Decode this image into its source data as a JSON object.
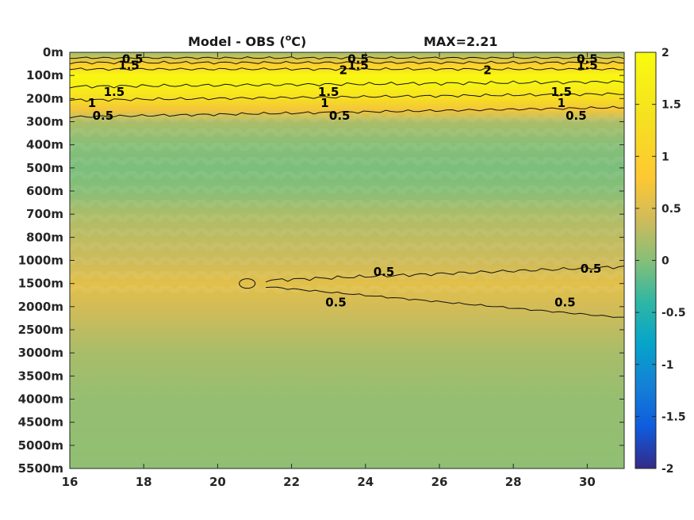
{
  "chart_data": {
    "type": "heatmap",
    "title": "Model - OBS (",
    "title_unit_sup": "o",
    "title_unit": "C)",
    "max_label": "MAX=2.21",
    "x_ticks": [
      "16",
      "18",
      "20",
      "22",
      "24",
      "26",
      "28",
      "30"
    ],
    "x_values": [
      16,
      18,
      20,
      22,
      24,
      26,
      28,
      30
    ],
    "xlim": [
      16,
      31
    ],
    "y_ticks": [
      "0m",
      "100m",
      "200m",
      "300m",
      "400m",
      "500m",
      "600m",
      "700m",
      "800m",
      "1000m",
      "1500m",
      "2000m",
      "2500m",
      "3000m",
      "3500m",
      "4000m",
      "4500m",
      "5000m",
      "5500m"
    ],
    "colorbar_ticks": [
      "2",
      "1.5",
      "1",
      "0.5",
      "0",
      "-0.5",
      "-1",
      "-1.5",
      "-2"
    ],
    "colorbar_values": [
      2,
      1.5,
      1,
      0.5,
      0,
      -0.5,
      -1,
      -1.5,
      -2
    ],
    "clim": [
      -2,
      2
    ],
    "depth_profile": [
      {
        "depth": "0m",
        "value": 0.15
      },
      {
        "depth": "50m",
        "value": 0.9
      },
      {
        "depth": "100m",
        "value": 1.9
      },
      {
        "depth": "150m",
        "value": 1.7
      },
      {
        "depth": "200m",
        "value": 1.3
      },
      {
        "depth": "250m",
        "value": 0.7
      },
      {
        "depth": "300m",
        "value": 0.2
      },
      {
        "depth": "400m",
        "value": 0.0
      },
      {
        "depth": "500m",
        "value": -0.05
      },
      {
        "depth": "600m",
        "value": 0.0
      },
      {
        "depth": "700m",
        "value": 0.2
      },
      {
        "depth": "800m",
        "value": 0.3
      },
      {
        "depth": "1000m",
        "value": 0.38
      },
      {
        "depth": "1500m",
        "value": 0.55
      },
      {
        "depth": "2000m",
        "value": 0.42
      },
      {
        "depth": "2500m",
        "value": 0.3
      },
      {
        "depth": "3000m",
        "value": 0.18
      },
      {
        "depth": "4000m",
        "value": 0.08
      },
      {
        "depth": "5500m",
        "value": 0.05
      }
    ],
    "contour_labels": [
      {
        "text": "0.5",
        "x": 17.7,
        "depth": "0m"
      },
      {
        "text": "1.5",
        "x": 17.6,
        "depth": "100m"
      },
      {
        "text": "1.5",
        "x": 17.2,
        "depth": "200m"
      },
      {
        "text": "1",
        "x": 16.6,
        "depth": "200m"
      },
      {
        "text": "0.5",
        "x": 16.9,
        "depth": "300m"
      },
      {
        "text": "0.5",
        "x": 23.8,
        "depth": "0m"
      },
      {
        "text": "1.5",
        "x": 23.8,
        "depth": "100m"
      },
      {
        "text": "2",
        "x": 23.4,
        "depth": "100m"
      },
      {
        "text": "1.5",
        "x": 23.0,
        "depth": "200m"
      },
      {
        "text": "1",
        "x": 22.9,
        "depth": "200m"
      },
      {
        "text": "0.5",
        "x": 23.3,
        "depth": "300m"
      },
      {
        "text": "2",
        "x": 27.3,
        "depth": "100m"
      },
      {
        "text": "0.5",
        "x": 30.0,
        "depth": "0m"
      },
      {
        "text": "1.5",
        "x": 30.0,
        "depth": "100m"
      },
      {
        "text": "1.5",
        "x": 29.3,
        "depth": "200m"
      },
      {
        "text": "1",
        "x": 29.3,
        "depth": "200m"
      },
      {
        "text": "0.5",
        "x": 29.7,
        "depth": "300m"
      },
      {
        "text": "0.5",
        "x": 24.5,
        "depth": "1500m"
      },
      {
        "text": "0.5",
        "x": 30.1,
        "depth": "1000m"
      },
      {
        "text": "0.5",
        "x": 23.2,
        "depth": "2000m"
      },
      {
        "text": "0.5",
        "x": 29.4,
        "depth": "2000m"
      }
    ]
  }
}
